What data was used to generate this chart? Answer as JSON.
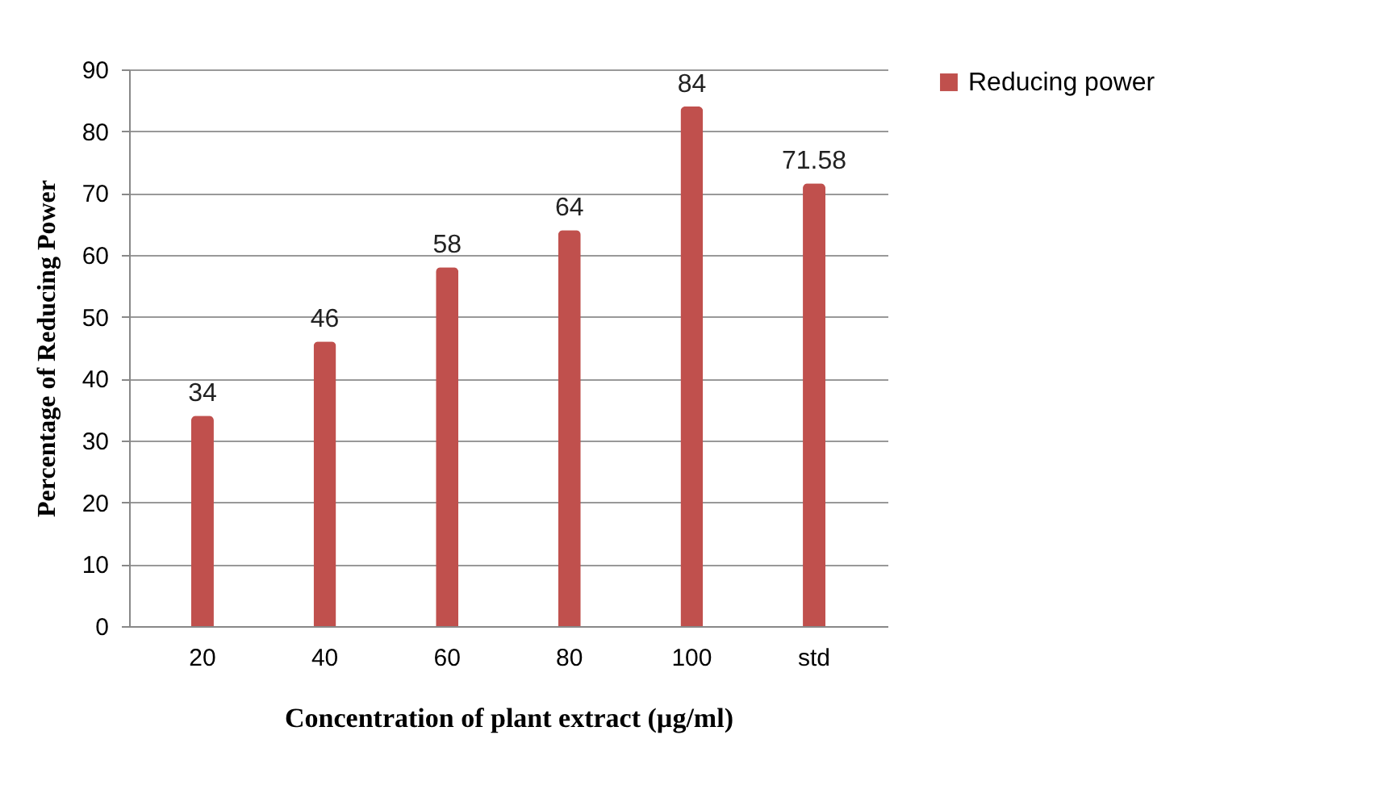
{
  "chart_data": {
    "type": "bar",
    "xlabel": "Concentration of plant extract  (µg/ml)",
    "ylabel": "Percentage of Reducing Power",
    "categories": [
      "20",
      "40",
      "60",
      "80",
      "100",
      "std"
    ],
    "series": [
      {
        "name": "Reducing power",
        "color": "#c0504d",
        "values": [
          34,
          46,
          58,
          64,
          84,
          71.58
        ]
      }
    ],
    "ylim": [
      0,
      90
    ],
    "yticks": [
      0,
      10,
      20,
      30,
      40,
      50,
      60,
      70,
      80,
      90
    ],
    "grid": "y",
    "legend": "right",
    "data_labels": true
  }
}
